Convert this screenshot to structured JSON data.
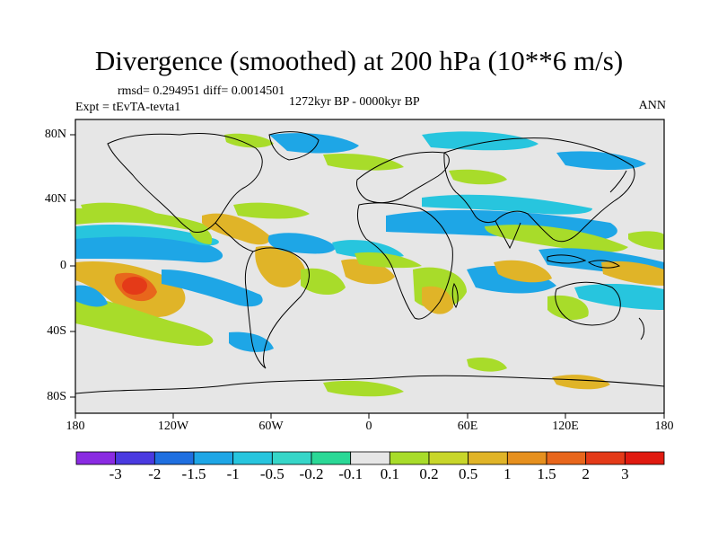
{
  "title": "Divergence (smoothed) at 200 hPa (10**6 m/s)",
  "stats": "rmsd= 0.294951 diff= 0.0014501",
  "experiment": "Expt = tEvTA-tevta1",
  "period": "1272kyr BP - 0000kyr BP",
  "season": "ANN",
  "lat_labels": [
    "80N",
    "40N",
    "0",
    "40S",
    "80S"
  ],
  "lon_labels": [
    "180",
    "120W",
    "60W",
    "0",
    "60E",
    "120E",
    "180"
  ],
  "colorbar": {
    "labels": [
      "-3",
      "-2",
      "-1.5",
      "-1",
      "-0.5",
      "-0.2",
      "-0.1",
      "0.1",
      "0.2",
      "0.5",
      "1",
      "1.5",
      "2",
      "3"
    ],
    "colors": [
      "#8a2be2",
      "#4a3ae0",
      "#1f6fe0",
      "#1ea6e6",
      "#27c5de",
      "#36d6c8",
      "#2ad896",
      "#e6e6e6",
      "#a8dc2a",
      "#c8d62a",
      "#e0b428",
      "#e6901e",
      "#e8661c",
      "#e43a18",
      "#e01a10"
    ]
  }
}
